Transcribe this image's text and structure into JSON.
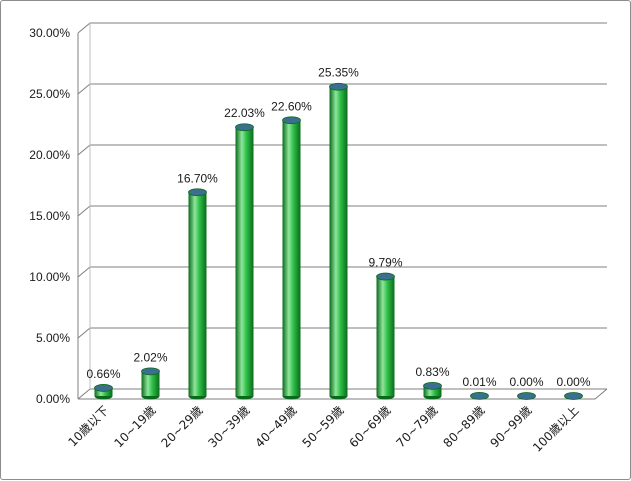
{
  "chart_data": {
    "type": "bar",
    "categories": [
      "10歲以下",
      "10~19歲",
      "20~29歲",
      "30~39歲",
      "40~49歲",
      "50~59歲",
      "60~69歲",
      "70~79歲",
      "80~89歲",
      "90~99歲",
      "100歲以上"
    ],
    "values": [
      0.66,
      2.02,
      16.7,
      22.03,
      22.6,
      25.35,
      9.79,
      0.83,
      0.01,
      0.0,
      0.0
    ],
    "data_labels": [
      "0.66%",
      "2.02%",
      "16.70%",
      "22.03%",
      "22.60%",
      "25.35%",
      "9.79%",
      "0.83%",
      "0.01%",
      "0.00%",
      "0.00%"
    ],
    "y_ticks": [
      "0.00%",
      "5.00%",
      "10.00%",
      "15.00%",
      "20.00%",
      "25.00%",
      "30.00%"
    ],
    "ylim": [
      0,
      30
    ],
    "grid": true,
    "legend": "none",
    "colors": {
      "bar": "#1fae3a",
      "bar_dark": "#0a6a1c",
      "bar_light": "#8fe69c",
      "bar_top": "#3b6f8f",
      "grid": "#7f7f7f"
    }
  }
}
